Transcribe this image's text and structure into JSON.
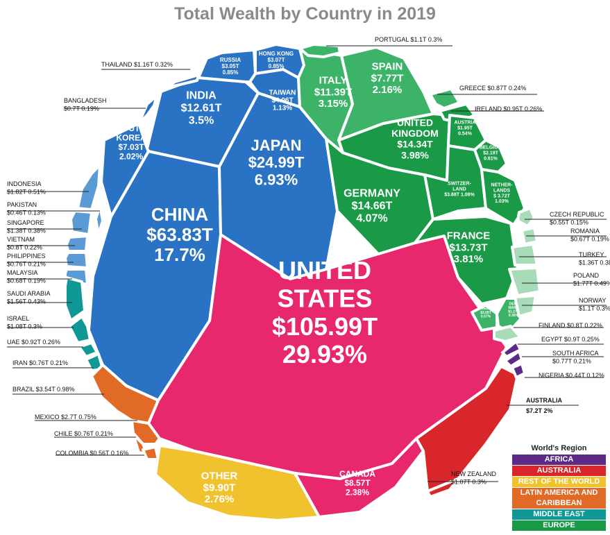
{
  "chart_data": {
    "type": "voronoi-treemap",
    "title": "Total Wealth by Country in 2019",
    "legend": {
      "title": "World's Region",
      "position": "bottom-right",
      "items": [
        {
          "name": "AFRICA",
          "color": "#5b2a86"
        },
        {
          "name": "AUSTRALIA",
          "color": "#d9262a"
        },
        {
          "name": "REST OF THE WORLD",
          "color": "#f0c22e"
        },
        {
          "name": "LATIN AMERICA AND CARIBBEAN",
          "color": "#e06a26"
        },
        {
          "name": "MIDDLE EAST",
          "color": "#0f9896"
        },
        {
          "name": "EUROPE",
          "color": "#1a9a46"
        }
      ]
    },
    "cells": [
      {
        "id": "united-states",
        "lines": [
          "UNITED",
          "STATES",
          "$105.99T",
          "29.93%"
        ],
        "value": 105.99,
        "pct": 29.93,
        "region": "rest",
        "color": "#e8286d"
      },
      {
        "id": "china",
        "lines": [
          "CHINA",
          "$63.83T",
          "17.7%"
        ],
        "value": 63.83,
        "pct": 17.7,
        "region": "asia",
        "color": "#2a73c4"
      },
      {
        "id": "japan",
        "lines": [
          "JAPAN",
          "$24.99T",
          "6.93%"
        ],
        "value": 24.99,
        "pct": 6.93,
        "region": "asia",
        "color": "#2a73c4"
      },
      {
        "id": "india",
        "lines": [
          "INDIA",
          "$12.61T",
          "3.5%"
        ],
        "value": 12.61,
        "pct": 3.5,
        "region": "asia",
        "color": "#2a73c4"
      },
      {
        "id": "south-korea",
        "lines": [
          "SOUTH",
          "KOREA",
          "$7.03T",
          "2.02%"
        ],
        "value": 7.03,
        "pct": 2.02,
        "region": "asia",
        "color": "#2a73c4"
      },
      {
        "id": "taiwan",
        "lines": [
          "TAIWAN",
          "$4.06T",
          "1.13%"
        ],
        "value": 4.06,
        "pct": 1.13,
        "region": "asia",
        "color": "#2a73c4"
      },
      {
        "id": "hong-kong",
        "lines": [
          "HONG KONG",
          "$3.07T",
          "0.85%"
        ],
        "value": 3.07,
        "pct": 0.85,
        "region": "asia",
        "color": "#2a73c4"
      },
      {
        "id": "russia",
        "lines": [
          "RUSSIA",
          "$3.05T",
          "0.85%"
        ],
        "value": 3.05,
        "pct": 0.85,
        "region": "asia",
        "color": "#2a73c4"
      },
      {
        "id": "thailand",
        "lines": [],
        "value": 1.16,
        "pct": 0.32,
        "region": "asia",
        "color": "#2a73c4"
      },
      {
        "id": "bangladesh",
        "lines": [],
        "value": 0.7,
        "pct": 0.19,
        "region": "asia",
        "color": "#2a73c4"
      },
      {
        "id": "indonesia",
        "lines": [],
        "value": 1.82,
        "pct": 0.51,
        "region": "asia",
        "color": "#5b9bd5"
      },
      {
        "id": "pakistan",
        "lines": [],
        "value": 0.46,
        "pct": 0.13,
        "region": "asia",
        "color": "#5b9bd5"
      },
      {
        "id": "singapore",
        "lines": [],
        "value": 1.38,
        "pct": 0.38,
        "region": "asia",
        "color": "#5b9bd5"
      },
      {
        "id": "vietnam",
        "lines": [],
        "value": 0.8,
        "pct": 0.22,
        "region": "asia",
        "color": "#5b9bd5"
      },
      {
        "id": "philippines",
        "lines": [],
        "value": 0.76,
        "pct": 0.21,
        "region": "asia",
        "color": "#5b9bd5"
      },
      {
        "id": "malaysia",
        "lines": [],
        "value": 0.68,
        "pct": 0.19,
        "region": "asia",
        "color": "#5b9bd5"
      },
      {
        "id": "saudi-arabia",
        "lines": [],
        "value": 1.56,
        "pct": 0.43,
        "region": "middle-east",
        "color": "#0f9896"
      },
      {
        "id": "israel",
        "lines": [],
        "value": 1.08,
        "pct": 0.3,
        "region": "middle-east",
        "color": "#0f9896"
      },
      {
        "id": "uae",
        "lines": [],
        "value": 0.92,
        "pct": 0.26,
        "region": "middle-east",
        "color": "#0f9896"
      },
      {
        "id": "iran",
        "lines": [],
        "value": 0.76,
        "pct": 0.21,
        "region": "middle-east",
        "color": "#0f9896"
      },
      {
        "id": "brazil",
        "lines": [],
        "value": 3.54,
        "pct": 0.98,
        "region": "latam",
        "color": "#e06a26"
      },
      {
        "id": "mexico",
        "lines": [],
        "value": 2.7,
        "pct": 0.75,
        "region": "latam",
        "color": "#e06a26"
      },
      {
        "id": "chile",
        "lines": [],
        "value": 0.76,
        "pct": 0.21,
        "region": "latam",
        "color": "#e06a26"
      },
      {
        "id": "colombia",
        "lines": [],
        "value": 0.56,
        "pct": 0.16,
        "region": "latam",
        "color": "#e06a26"
      },
      {
        "id": "other",
        "lines": [
          "OTHER",
          "$9.90T",
          "2.76%"
        ],
        "value": 9.9,
        "pct": 2.76,
        "region": "rest",
        "color": "#f0c22e"
      },
      {
        "id": "canada",
        "lines": [
          "CANADA",
          "$8.57T",
          "2.38%"
        ],
        "value": 8.57,
        "pct": 2.38,
        "region": "rest",
        "color": "#e8286d"
      },
      {
        "id": "australia",
        "lines": [],
        "value": 7.2,
        "pct": 2.0,
        "region": "australia",
        "color": "#d9262a"
      },
      {
        "id": "new-zealand",
        "lines": [],
        "value": 1.07,
        "pct": 0.3,
        "region": "australia",
        "color": "#d9262a"
      },
      {
        "id": "nigeria",
        "lines": [],
        "value": 0.44,
        "pct": 0.12,
        "region": "africa",
        "color": "#5b2a86"
      },
      {
        "id": "south-africa",
        "lines": [],
        "value": 0.77,
        "pct": 0.21,
        "region": "africa",
        "color": "#5b2a86"
      },
      {
        "id": "egypt",
        "lines": [],
        "value": 0.9,
        "pct": 0.25,
        "region": "africa",
        "color": "#5b2a86"
      },
      {
        "id": "germany",
        "lines": [
          "GERMANY",
          "$14.66T",
          "4.07%"
        ],
        "value": 14.66,
        "pct": 4.07,
        "region": "europe",
        "color": "#1a9a46"
      },
      {
        "id": "france",
        "lines": [
          "FRANCE",
          "$13.73T",
          "3.81%"
        ],
        "value": 13.73,
        "pct": 3.81,
        "region": "europe",
        "color": "#1a9a46"
      },
      {
        "id": "united-kingdom",
        "lines": [
          "UNITED",
          "KINGDOM",
          "$14.34T",
          "3.98%"
        ],
        "value": 14.34,
        "pct": 3.98,
        "region": "europe",
        "color": "#1a9a46"
      },
      {
        "id": "italy",
        "lines": [
          "ITALY",
          "$11.39T",
          "3.15%"
        ],
        "value": 11.39,
        "pct": 3.15,
        "region": "europe",
        "color": "#3db36a"
      },
      {
        "id": "spain",
        "lines": [
          "SPAIN",
          "$7.77T",
          "2.16%"
        ],
        "value": 7.77,
        "pct": 2.16,
        "region": "europe",
        "color": "#3db36a"
      },
      {
        "id": "portugal",
        "lines": [],
        "value": 1.1,
        "pct": 0.3,
        "region": "europe",
        "color": "#3db36a"
      },
      {
        "id": "greece",
        "lines": [],
        "value": 0.87,
        "pct": 0.24,
        "region": "europe",
        "color": "#3db36a"
      },
      {
        "id": "ireland",
        "lines": [],
        "value": 0.95,
        "pct": 0.26,
        "region": "europe",
        "color": "#1a9a46"
      },
      {
        "id": "austria",
        "lines": [
          "AUSTRIA",
          "$1.95T",
          "0.54%"
        ],
        "value": 1.95,
        "pct": 0.54,
        "region": "europe",
        "color": "#1a9a46"
      },
      {
        "id": "belgium",
        "lines": [
          "BELGIUM",
          "$2.19T",
          "0.61%"
        ],
        "value": 2.19,
        "pct": 0.61,
        "region": "europe",
        "color": "#1a9a46"
      },
      {
        "id": "switzerland",
        "lines": [
          "SWITZER-",
          "LAND",
          "$3.88T 1.08%"
        ],
        "value": 3.88,
        "pct": 1.08,
        "region": "europe",
        "color": "#1a9a46"
      },
      {
        "id": "netherlands",
        "lines": [
          "NETHER-",
          "LANDS",
          "$ 3.72T",
          "1.03%"
        ],
        "value": 3.72,
        "pct": 1.03,
        "region": "europe",
        "color": "#1a9a46"
      },
      {
        "id": "sweden",
        "lines": [
          "SWEDEN",
          "$2.05T",
          "0.57%"
        ],
        "value": 2.05,
        "pct": 0.57,
        "region": "europe",
        "color": "#3db36a"
      },
      {
        "id": "denmark",
        "lines": [
          "DEN-",
          "MARK",
          "$1.27T",
          "0.35%"
        ],
        "value": 1.27,
        "pct": 0.35,
        "region": "europe",
        "color": "#3db36a"
      },
      {
        "id": "czech-republic",
        "lines": [],
        "value": 0.55,
        "pct": 0.15,
        "region": "europe",
        "color": "#a8dcb8"
      },
      {
        "id": "romania",
        "lines": [],
        "value": 0.67,
        "pct": 0.19,
        "region": "europe",
        "color": "#a8dcb8"
      },
      {
        "id": "turkey",
        "lines": [],
        "value": 1.36,
        "pct": 0.38,
        "region": "europe",
        "color": "#a8dcb8"
      },
      {
        "id": "poland",
        "lines": [],
        "value": 1.77,
        "pct": 0.49,
        "region": "europe",
        "color": "#a8dcb8"
      },
      {
        "id": "norway",
        "lines": [],
        "value": 1.1,
        "pct": 0.3,
        "region": "europe",
        "color": "#a8dcb8"
      },
      {
        "id": "finland",
        "lines": [],
        "value": 0.8,
        "pct": 0.22,
        "region": "europe",
        "color": "#a8dcb8"
      }
    ],
    "callouts": [
      {
        "id": "portugal",
        "text": "PORTUGAL  $1.1T  0.3%"
      },
      {
        "id": "thailand",
        "text": "THAILAND $1.16T  0.32%"
      },
      {
        "id": "bangladesh",
        "lines": [
          "BANGLADESH",
          "$0.7T  0.19%"
        ]
      },
      {
        "id": "greece",
        "text": "GREECE $0.87T  0.24%"
      },
      {
        "id": "ireland",
        "text": "IRELAND $0.95T  0.26%"
      },
      {
        "id": "indonesia",
        "lines": [
          "INDONESIA",
          "$1.82T  0.51%"
        ]
      },
      {
        "id": "pakistan",
        "lines": [
          "PAKISTAN",
          "$0.46T  0.13%"
        ]
      },
      {
        "id": "singapore",
        "lines": [
          "SINGAPORE",
          "$1.38T  0.38%"
        ]
      },
      {
        "id": "vietnam",
        "lines": [
          "VIETNAM",
          "$0.8T  0.22%"
        ]
      },
      {
        "id": "philippines",
        "lines": [
          "PHILIPPINES",
          "$0.76T  0.21%"
        ]
      },
      {
        "id": "malaysia",
        "lines": [
          "MALAYSIA",
          "$0.68T  0.19%"
        ]
      },
      {
        "id": "saudi-arabia",
        "lines": [
          "SAUDI ARABIA",
          "$1.56T  0.43%"
        ]
      },
      {
        "id": "israel",
        "lines": [
          "ISRAEL",
          "$1.08T  0.3%"
        ]
      },
      {
        "id": "uae",
        "text": "UAE  $0.92T  0.26%"
      },
      {
        "id": "iran",
        "text": "IRAN $0.76T  0.21%"
      },
      {
        "id": "brazil",
        "text": "BRAZIL  $3.54T  0.98%"
      },
      {
        "id": "mexico",
        "text": "MEXICO  $2.7T  0.75%"
      },
      {
        "id": "chile",
        "text": "CHILE  $0.76T  0.21%"
      },
      {
        "id": "colombia",
        "text": "COLOMBIA  $0.56T  0.16%"
      },
      {
        "id": "czech-republic",
        "lines": [
          "CZECH REPUBLIC",
          "$0.55T  0.15%"
        ]
      },
      {
        "id": "romania",
        "lines": [
          "ROMANIA",
          "$0.67T  0.19%"
        ]
      },
      {
        "id": "turkey",
        "lines": [
          "TURKEY",
          "$1.36T  0.38%"
        ]
      },
      {
        "id": "poland",
        "lines": [
          "POLAND",
          "$1.77T  0.49%"
        ]
      },
      {
        "id": "norway",
        "lines": [
          "NORWAY",
          "$1.1T  0.3%"
        ]
      },
      {
        "id": "finland",
        "text": "FINLAND  $0.8T  0.22%"
      },
      {
        "id": "egypt",
        "text": "EGYPT  $0.9T  0.25%"
      },
      {
        "id": "south-africa",
        "lines": [
          "SOUTH AFRICA",
          "$0.77T  0.21%"
        ]
      },
      {
        "id": "nigeria",
        "text": "NIGERIA  $0.44T  0.12%"
      },
      {
        "id": "australia",
        "lines": [
          "AUSTRALIA",
          "$7.2T  2%"
        ],
        "big": true
      },
      {
        "id": "new-zealand",
        "lines": [
          "NEW ZEALAND",
          "$1.07T  0.3%"
        ]
      }
    ]
  }
}
